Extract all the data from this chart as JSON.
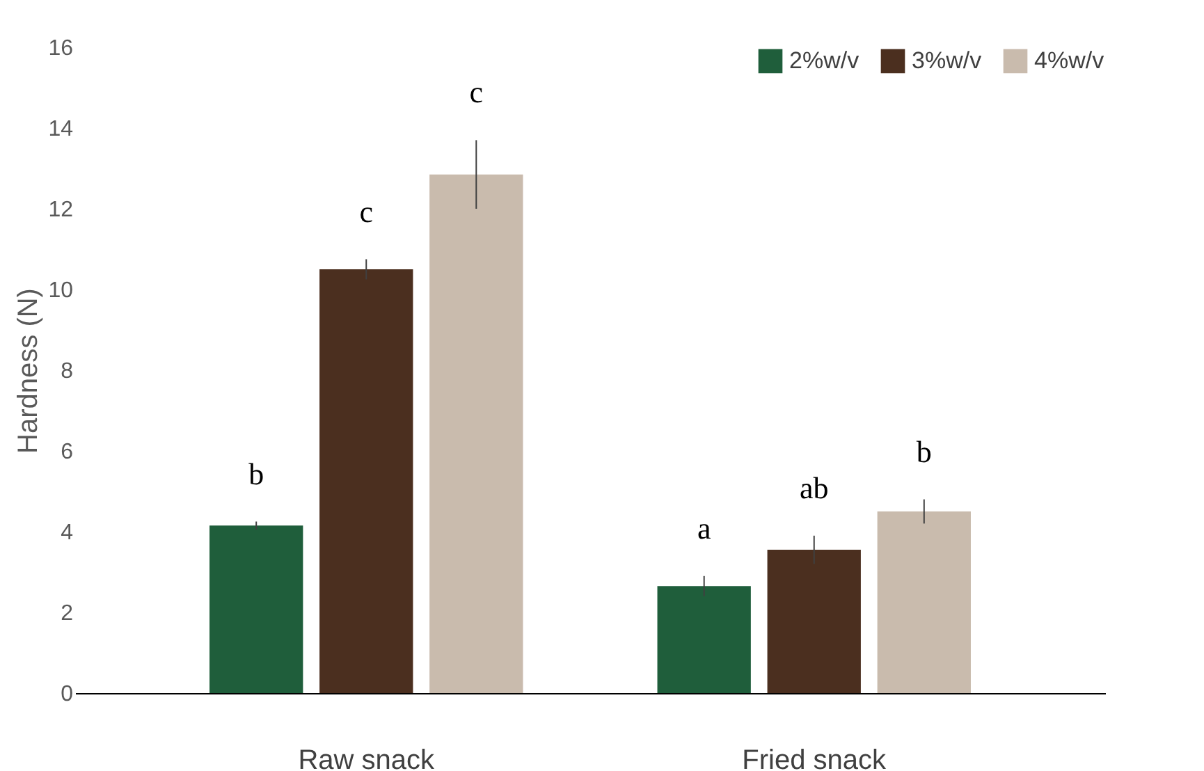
{
  "chart_data": {
    "type": "bar",
    "ylabel": "Hardness (N)",
    "categories": [
      "Raw snack",
      "Fried snack"
    ],
    "series": [
      {
        "name": "2%w/v",
        "color": "#1f5e3b",
        "values": [
          4.15,
          2.65
        ],
        "errors": [
          0.1,
          0.25
        ]
      },
      {
        "name": "3%w/v",
        "color": "#4b2f1f",
        "values": [
          10.5,
          3.55
        ],
        "errors": [
          0.25,
          0.35
        ]
      },
      {
        "name": "4%w/v",
        "color": "#c9bbad",
        "values": [
          12.85,
          4.5
        ],
        "errors": [
          0.85,
          0.3
        ]
      }
    ],
    "ylim": [
      0,
      16
    ],
    "yticks": [
      0,
      2,
      4,
      6,
      8,
      10,
      12,
      14,
      16
    ],
    "grid": false,
    "legend": "top right",
    "annotations": [
      "b",
      "c",
      "c",
      "a",
      "ab",
      "b"
    ]
  }
}
